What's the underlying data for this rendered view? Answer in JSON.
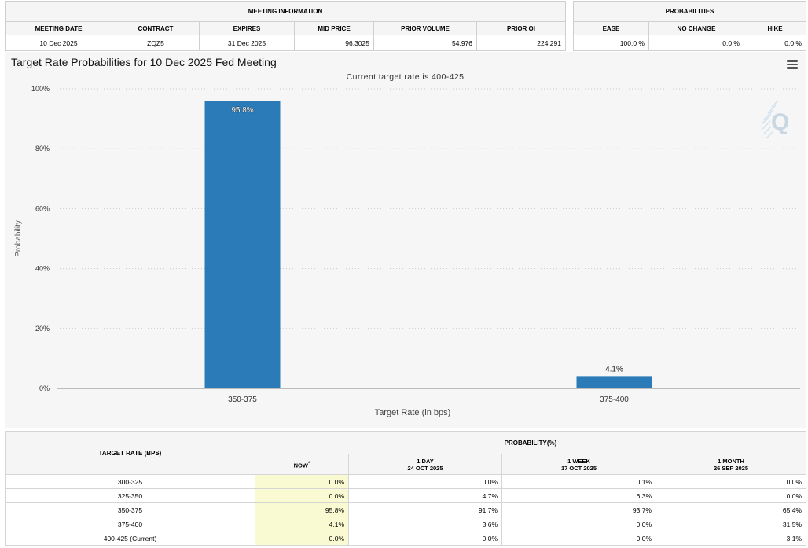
{
  "meeting_info": {
    "section_title": "MEETING INFORMATION",
    "headers": [
      "MEETING DATE",
      "CONTRACT",
      "EXPIRES",
      "MID PRICE",
      "PRIOR VOLUME",
      "PRIOR OI"
    ],
    "values": [
      "10 Dec 2025",
      "ZQZ5",
      "31 Dec 2025",
      "96.3025",
      "54,976",
      "224,291"
    ]
  },
  "probabilities": {
    "section_title": "PROBABILITIES",
    "headers": [
      "EASE",
      "NO CHANGE",
      "HIKE"
    ],
    "values": [
      "100.0 %",
      "0.0 %",
      "0.0 %"
    ]
  },
  "colors": {
    "bar": "#2b7bb9",
    "highlight": "#fafad2",
    "header_bg": "#f5f5f5"
  },
  "chart_data": {
    "type": "bar",
    "title": "Target Rate Probabilities for 10 Dec 2025 Fed Meeting",
    "subtitle": "Current target rate is 400-425",
    "xlabel": "Target Rate (in bps)",
    "ylabel": "Probability",
    "categories": [
      "350-375",
      "375-400"
    ],
    "values": [
      95.8,
      4.1
    ],
    "data_labels": [
      "95.8%",
      "4.1%"
    ],
    "ylim": [
      0,
      100
    ],
    "yticks": [
      0,
      20,
      40,
      60,
      80,
      100
    ],
    "ytick_labels": [
      "0%",
      "20%",
      "40%",
      "60%",
      "80%",
      "100%"
    ],
    "grid": true,
    "legend": "none"
  },
  "icons": {
    "menu": "hamburger-menu-icon",
    "brand": "q-logo-icon"
  },
  "table": {
    "target_rate_header": "TARGET RATE (BPS)",
    "probability_header": "PROBABILITY(%)",
    "columns": [
      {
        "line1": "NOW",
        "marker": "*",
        "line2": ""
      },
      {
        "line1": "1 DAY",
        "line2": "24 OCT 2025"
      },
      {
        "line1": "1 WEEK",
        "line2": "17 OCT 2025"
      },
      {
        "line1": "1 MONTH",
        "line2": "26 SEP 2025"
      }
    ],
    "rows": [
      {
        "rate": "300-325",
        "values": [
          "0.0%",
          "0.0%",
          "0.1%",
          "0.0%"
        ]
      },
      {
        "rate": "325-350",
        "values": [
          "0.0%",
          "4.7%",
          "6.3%",
          "0.0%"
        ]
      },
      {
        "rate": "350-375",
        "values": [
          "95.8%",
          "91.7%",
          "93.7%",
          "65.4%"
        ]
      },
      {
        "rate": "375-400",
        "values": [
          "4.1%",
          "3.6%",
          "0.0%",
          "31.5%"
        ]
      },
      {
        "rate": "400-425 (Current)",
        "values": [
          "0.0%",
          "0.0%",
          "0.0%",
          "3.1%"
        ]
      }
    ]
  }
}
